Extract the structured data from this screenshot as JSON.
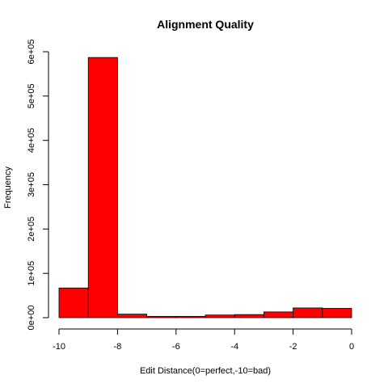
{
  "chart_data": {
    "type": "bar",
    "title": "Alignment Quality",
    "xlabel": "Edit Distance(0=perfect,-10=bad)",
    "ylabel": "Frequency",
    "bins": [
      {
        "start": -10,
        "end": -9,
        "value": 67000
      },
      {
        "start": -9,
        "end": -8,
        "value": 587000
      },
      {
        "start": -8,
        "end": -7,
        "value": 8000
      },
      {
        "start": -7,
        "end": -6,
        "value": 3000
      },
      {
        "start": -6,
        "end": -5,
        "value": 3000
      },
      {
        "start": -5,
        "end": -4,
        "value": 6000
      },
      {
        "start": -4,
        "end": -3,
        "value": 7000
      },
      {
        "start": -3,
        "end": -2,
        "value": 13000
      },
      {
        "start": -2,
        "end": -1,
        "value": 22000
      },
      {
        "start": -1,
        "end": 0,
        "value": 21000
      }
    ],
    "xlim": [
      -10,
      0
    ],
    "ylim": [
      0,
      600000
    ],
    "x_ticks": [
      -10,
      -8,
      -6,
      -4,
      -2,
      0
    ],
    "x_tick_labels": [
      "-10",
      "-8",
      "-6",
      "-4",
      "-2",
      "0"
    ],
    "y_ticks": [
      0,
      100000,
      200000,
      300000,
      400000,
      500000,
      600000
    ],
    "y_tick_labels": [
      "0e+00",
      "1e+05",
      "2e+05",
      "3e+05",
      "4e+05",
      "5e+05",
      "6e+05"
    ],
    "bar_color": "#ff0000",
    "grid": false,
    "legend": "none"
  }
}
